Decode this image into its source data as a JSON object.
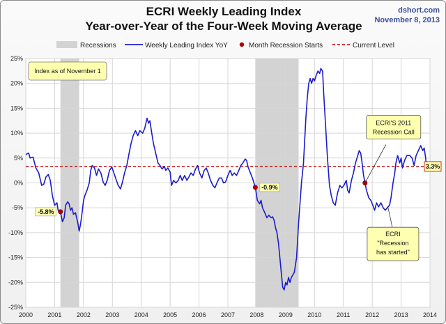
{
  "title": "ECRI Weekly Leading Index",
  "subtitle": "Year-over-Year of the Four-Week Moving Average",
  "source": "dshort.com",
  "date": "November 8, 2013",
  "info_box": "Index as of November 1",
  "legend": {
    "recessions": "Recessions",
    "series": "Weekly Leading Index YoY",
    "recession_start": "Month Recession Starts",
    "current": "Current Level"
  },
  "annotations": {
    "a2001": "-5.8%",
    "a2008": "-0.9%",
    "current": "3.3%",
    "call_line1": "ECRI'S 2011",
    "call_line2": "Recession Call",
    "started_line1": "ECRI",
    "started_line2": "\"Recession",
    "started_line3": "has started\""
  },
  "colors": {
    "series": "#1c1ccc",
    "recession": "#d3d3d3",
    "current": "#c00000",
    "marker": "#b00000",
    "callout": "#ffffb0"
  },
  "chart_data": {
    "type": "line",
    "xlabel": "",
    "ylabel": "",
    "xlim": [
      2000,
      2014
    ],
    "ylim": [
      -25,
      25
    ],
    "x_ticks": [
      "2000",
      "2001",
      "2002",
      "2003",
      "2004",
      "2005",
      "2006",
      "2007",
      "2008",
      "2009",
      "2010",
      "2011",
      "2012",
      "2013",
      "2014"
    ],
    "y_ticks": [
      "-25%",
      "-20%",
      "-15%",
      "-10%",
      "-5%",
      "0%",
      "5%",
      "10%",
      "15%",
      "20%",
      "25%"
    ],
    "grid": true,
    "legend_position": "top",
    "recessions": [
      [
        2001.2,
        2001.85
      ],
      [
        2007.95,
        2009.45
      ]
    ],
    "current_level": 3.3,
    "recession_start_points": [
      [
        2001.2,
        -5.8
      ],
      [
        2007.95,
        -0.9
      ],
      [
        2011.75,
        0
      ]
    ],
    "series": [
      {
        "name": "Weekly Leading Index YoY",
        "points": [
          [
            2000.0,
            5.7
          ],
          [
            2000.1,
            6.0
          ],
          [
            2000.15,
            5.0
          ],
          [
            2000.25,
            5.2
          ],
          [
            2000.35,
            3.0
          ],
          [
            2000.45,
            2.0
          ],
          [
            2000.55,
            -0.5
          ],
          [
            2000.62,
            -0.3
          ],
          [
            2000.7,
            1.2
          ],
          [
            2000.78,
            1.7
          ],
          [
            2000.85,
            0.5
          ],
          [
            2000.92,
            -2.5
          ],
          [
            2001.0,
            -4.5
          ],
          [
            2001.08,
            -4.0
          ],
          [
            2001.12,
            -5.5
          ],
          [
            2001.2,
            -5.8
          ],
          [
            2001.27,
            -7.8
          ],
          [
            2001.33,
            -7.0
          ],
          [
            2001.38,
            -4.5
          ],
          [
            2001.45,
            -3.8
          ],
          [
            2001.5,
            -4.2
          ],
          [
            2001.55,
            -5.5
          ],
          [
            2001.6,
            -5.0
          ],
          [
            2001.65,
            -6.3
          ],
          [
            2001.72,
            -6.0
          ],
          [
            2001.8,
            -8.0
          ],
          [
            2001.85,
            -9.7
          ],
          [
            2001.9,
            -8.2
          ],
          [
            2001.95,
            -6.0
          ],
          [
            2002.0,
            -3.5
          ],
          [
            2002.05,
            -2.5
          ],
          [
            2002.12,
            -1.5
          ],
          [
            2002.2,
            0.0
          ],
          [
            2002.25,
            2.5
          ],
          [
            2002.3,
            3.5
          ],
          [
            2002.38,
            3.0
          ],
          [
            2002.45,
            1.5
          ],
          [
            2002.52,
            2.8
          ],
          [
            2002.6,
            2.0
          ],
          [
            2002.68,
            0.2
          ],
          [
            2002.75,
            -0.5
          ],
          [
            2002.82,
            0.5
          ],
          [
            2002.9,
            2.5
          ],
          [
            2002.98,
            3.2
          ],
          [
            2003.05,
            2.0
          ],
          [
            2003.12,
            0.8
          ],
          [
            2003.2,
            -0.5
          ],
          [
            2003.28,
            -1.2
          ],
          [
            2003.35,
            0.2
          ],
          [
            2003.42,
            2.0
          ],
          [
            2003.5,
            3.5
          ],
          [
            2003.58,
            6.0
          ],
          [
            2003.65,
            8.0
          ],
          [
            2003.72,
            9.5
          ],
          [
            2003.8,
            10.5
          ],
          [
            2003.88,
            9.5
          ],
          [
            2003.95,
            10.5
          ],
          [
            2004.05,
            10.0
          ],
          [
            2004.12,
            11.0
          ],
          [
            2004.2,
            13.0
          ],
          [
            2004.25,
            12.0
          ],
          [
            2004.3,
            12.5
          ],
          [
            2004.35,
            10.5
          ],
          [
            2004.42,
            8.0
          ],
          [
            2004.5,
            6.0
          ],
          [
            2004.58,
            4.0
          ],
          [
            2004.65,
            3.5
          ],
          [
            2004.72,
            2.8
          ],
          [
            2004.8,
            3.3
          ],
          [
            2004.85,
            2.5
          ],
          [
            2004.92,
            3.0
          ],
          [
            2005.0,
            2.2
          ],
          [
            2005.05,
            -0.5
          ],
          [
            2005.12,
            0.5
          ],
          [
            2005.2,
            0.0
          ],
          [
            2005.28,
            0.5
          ],
          [
            2005.35,
            1.5
          ],
          [
            2005.42,
            0.5
          ],
          [
            2005.5,
            1.5
          ],
          [
            2005.58,
            0.5
          ],
          [
            2005.65,
            1.2
          ],
          [
            2005.72,
            2.0
          ],
          [
            2005.8,
            1.5
          ],
          [
            2005.88,
            2.8
          ],
          [
            2005.95,
            3.5
          ],
          [
            2006.02,
            2.0
          ],
          [
            2006.1,
            1.0
          ],
          [
            2006.18,
            2.5
          ],
          [
            2006.25,
            3.0
          ],
          [
            2006.32,
            2.0
          ],
          [
            2006.4,
            0.5
          ],
          [
            2006.48,
            -0.5
          ],
          [
            2006.55,
            -1.0
          ],
          [
            2006.62,
            0.0
          ],
          [
            2006.7,
            1.0
          ],
          [
            2006.78,
            1.0
          ],
          [
            2006.85,
            0.0
          ],
          [
            2006.92,
            0.2
          ],
          [
            2007.0,
            1.5
          ],
          [
            2007.08,
            2.5
          ],
          [
            2007.15,
            1.5
          ],
          [
            2007.22,
            2.0
          ],
          [
            2007.3,
            1.5
          ],
          [
            2007.38,
            2.5
          ],
          [
            2007.45,
            3.5
          ],
          [
            2007.52,
            4.0
          ],
          [
            2007.6,
            4.8
          ],
          [
            2007.65,
            4.5
          ],
          [
            2007.7,
            3.2
          ],
          [
            2007.78,
            2.0
          ],
          [
            2007.85,
            1.0
          ],
          [
            2007.95,
            -0.9
          ],
          [
            2008.02,
            -3.5
          ],
          [
            2008.1,
            -4.2
          ],
          [
            2008.15,
            -3.5
          ],
          [
            2008.2,
            -5.0
          ],
          [
            2008.28,
            -6.0
          ],
          [
            2008.35,
            -7.0
          ],
          [
            2008.42,
            -6.5
          ],
          [
            2008.5,
            -7.0
          ],
          [
            2008.55,
            -6.8
          ],
          [
            2008.6,
            -7.5
          ],
          [
            2008.65,
            -9.0
          ],
          [
            2008.7,
            -10.0
          ],
          [
            2008.75,
            -12.0
          ],
          [
            2008.8,
            -15.0
          ],
          [
            2008.85,
            -18.0
          ],
          [
            2008.9,
            -21.0
          ],
          [
            2008.95,
            -21.5
          ],
          [
            2009.0,
            -20.0
          ],
          [
            2009.05,
            -20.5
          ],
          [
            2009.1,
            -19.0
          ],
          [
            2009.15,
            -20.0
          ],
          [
            2009.2,
            -19.0
          ],
          [
            2009.3,
            -18.0
          ],
          [
            2009.38,
            -15.0
          ],
          [
            2009.45,
            -8.0
          ],
          [
            2009.55,
            0.0
          ],
          [
            2009.62,
            4.0
          ],
          [
            2009.7,
            13.0
          ],
          [
            2009.75,
            17.0
          ],
          [
            2009.8,
            20.0
          ],
          [
            2009.85,
            21.0
          ],
          [
            2009.9,
            20.0
          ],
          [
            2009.95,
            21.0
          ],
          [
            2010.0,
            20.5
          ],
          [
            2010.05,
            21.5
          ],
          [
            2010.12,
            22.5
          ],
          [
            2010.18,
            22.0
          ],
          [
            2010.22,
            23.0
          ],
          [
            2010.28,
            22.5
          ],
          [
            2010.32,
            18.0
          ],
          [
            2010.38,
            12.0
          ],
          [
            2010.45,
            5.0
          ],
          [
            2010.52,
            -0.5
          ],
          [
            2010.58,
            -2.5
          ],
          [
            2010.65,
            -4.0
          ],
          [
            2010.72,
            -4.5
          ],
          [
            2010.8,
            -2.0
          ],
          [
            2010.88,
            -0.5
          ],
          [
            2010.95,
            -1.0
          ],
          [
            2011.02,
            -0.5
          ],
          [
            2011.1,
            0.5
          ],
          [
            2011.15,
            -1.5
          ],
          [
            2011.2,
            -2.0
          ],
          [
            2011.28,
            0.5
          ],
          [
            2011.35,
            2.0
          ],
          [
            2011.42,
            4.0
          ],
          [
            2011.5,
            5.5
          ],
          [
            2011.55,
            6.5
          ],
          [
            2011.6,
            6.0
          ],
          [
            2011.65,
            4.0
          ],
          [
            2011.7,
            1.5
          ],
          [
            2011.75,
            0.0
          ],
          [
            2011.8,
            -1.5
          ],
          [
            2011.88,
            -3.0
          ],
          [
            2011.95,
            -3.5
          ],
          [
            2012.02,
            -4.5
          ],
          [
            2012.08,
            -5.5
          ],
          [
            2012.15,
            -4.0
          ],
          [
            2012.22,
            -4.8
          ],
          [
            2012.3,
            -4.0
          ],
          [
            2012.38,
            -5.0
          ],
          [
            2012.45,
            -5.5
          ],
          [
            2012.52,
            -5.0
          ],
          [
            2012.6,
            -4.5
          ],
          [
            2012.65,
            -3.0
          ],
          [
            2012.72,
            0.0
          ],
          [
            2012.78,
            2.0
          ],
          [
            2012.82,
            4.0
          ],
          [
            2012.88,
            5.5
          ],
          [
            2012.95,
            4.0
          ],
          [
            2013.0,
            5.0
          ],
          [
            2013.05,
            3.0
          ],
          [
            2013.12,
            4.5
          ],
          [
            2013.2,
            5.5
          ],
          [
            2013.3,
            5.5
          ],
          [
            2013.38,
            5.0
          ],
          [
            2013.45,
            3.5
          ],
          [
            2013.52,
            5.5
          ],
          [
            2013.6,
            6.5
          ],
          [
            2013.68,
            7.5
          ],
          [
            2013.75,
            6.5
          ],
          [
            2013.8,
            7.0
          ],
          [
            2013.85,
            5.0
          ],
          [
            2013.88,
            3.3
          ]
        ]
      }
    ]
  }
}
